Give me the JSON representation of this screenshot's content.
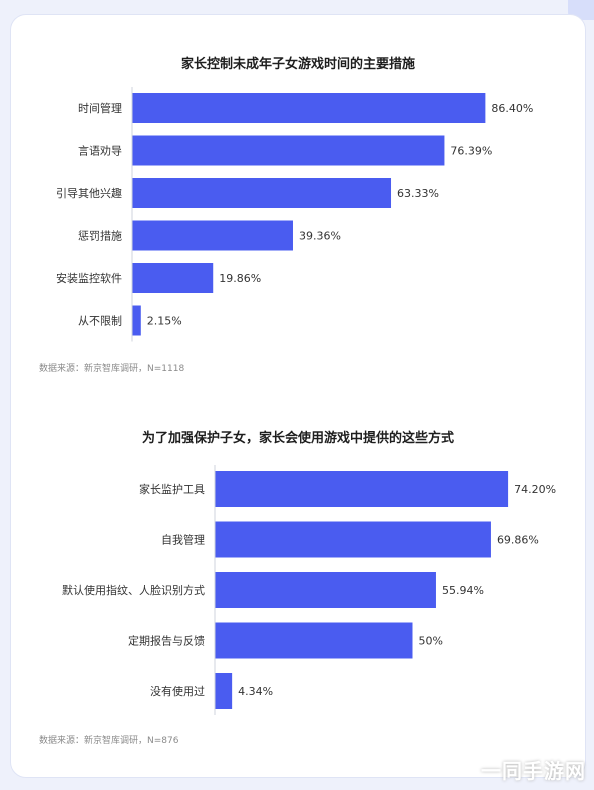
{
  "chart_data": [
    {
      "type": "bar",
      "orientation": "horizontal",
      "title": "家长控制未成年子女游戏时间的主要措施",
      "categories": [
        "时间管理",
        "言语劝导",
        "引导其他兴趣",
        "惩罚措施",
        "安装监控软件",
        "从不限制"
      ],
      "values": [
        86.4,
        76.39,
        63.33,
        39.36,
        19.86,
        2.15
      ],
      "value_labels": [
        "86.40%",
        "76.39%",
        "63.33%",
        "39.36%",
        "19.86%",
        "2.15%"
      ],
      "unit": "%",
      "xlim": [
        0,
        100
      ],
      "grid": false,
      "bar_color": "#4a5cf0",
      "source": "数据来源：新京智库调研，N=1118"
    },
    {
      "type": "bar",
      "orientation": "horizontal",
      "title": "为了加强保护子女，家长会使用游戏中提供的这些方式",
      "categories": [
        "家长监护工具",
        "自我管理",
        "默认使用指纹、人脸识别方式",
        "定期报告与反馈",
        "没有使用过"
      ],
      "values": [
        74.2,
        69.86,
        55.94,
        50,
        4.34
      ],
      "value_labels": [
        "74.20%",
        "69.86%",
        "55.94%",
        "50%",
        "4.34%"
      ],
      "unit": "%",
      "xlim": [
        0,
        100
      ],
      "grid": false,
      "bar_color": "#4a5cf0",
      "source": "数据来源：新京智库调研，N=876"
    }
  ],
  "watermark": "一同手游网"
}
